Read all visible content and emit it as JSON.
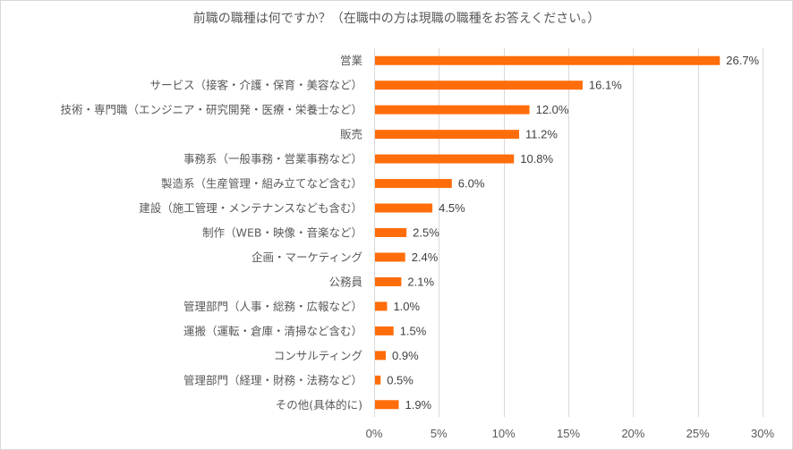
{
  "chart_data": {
    "type": "bar",
    "orientation": "horizontal",
    "title": "前職の職種は何ですか？（在職中の方は現職の職種をお答えください。）",
    "categories": [
      "営業",
      "サービス（接客・介護・保育・美容など）",
      "技術・専門職（エンジニア・研究開発・医療・栄養士など）",
      "販売",
      "事務系（一般事務・営業事務など）",
      "製造系（生産管理・組み立てなど含む）",
      "建設（施工管理・メンテナンスなども含む）",
      "制作（WEB・映像・音楽など）",
      "企画・マーケティング",
      "公務員",
      "管理部門（人事・総務・広報など）",
      "運搬（運転・倉庫・清掃など含む）",
      "コンサルティング",
      "管理部門（経理・財務・法務など）",
      "その他(具体的に)"
    ],
    "values": [
      26.7,
      16.1,
      12.0,
      11.2,
      10.8,
      6.0,
      4.5,
      2.5,
      2.4,
      2.1,
      1.0,
      1.5,
      0.9,
      0.5,
      1.9
    ],
    "value_labels": [
      "26.7%",
      "16.1%",
      "12.0%",
      "11.2%",
      "10.8%",
      "6.0%",
      "4.5%",
      "2.5%",
      "2.4%",
      "2.1%",
      "1.0%",
      "1.5%",
      "0.9%",
      "0.5%",
      "1.9%"
    ],
    "x_ticks": [
      "0%",
      "5%",
      "10%",
      "15%",
      "20%",
      "25%",
      "30%"
    ],
    "xlim": [
      0,
      30
    ],
    "grid": true,
    "bar_color": "#ff6d0a",
    "grid_color": "#d9d9d9"
  }
}
